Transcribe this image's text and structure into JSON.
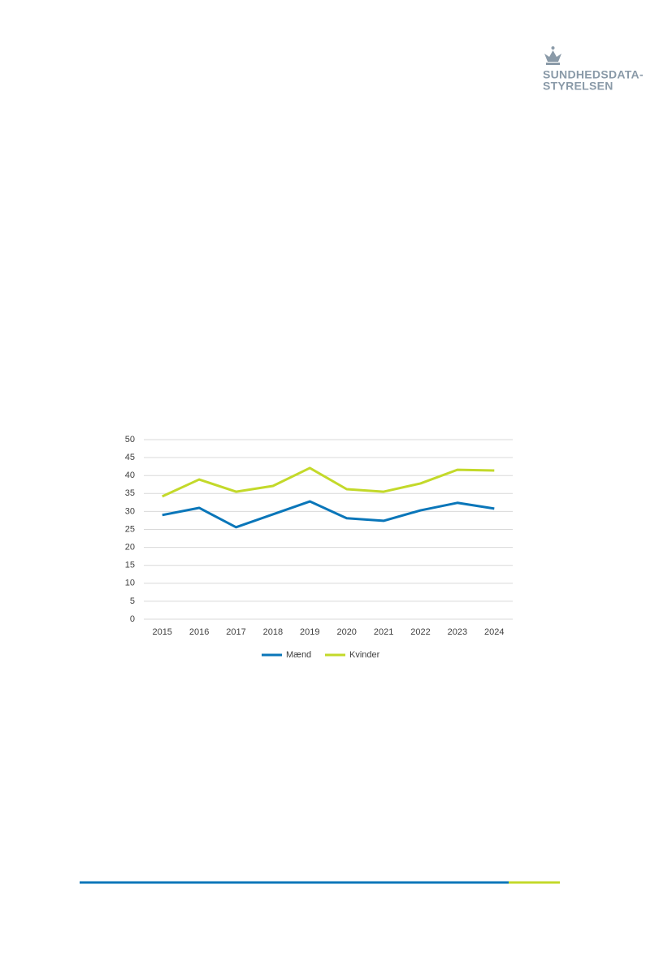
{
  "logo": {
    "line1": "SUNDHEDSDATA-",
    "line2": "STYRELSEN"
  },
  "chart_data": {
    "type": "line",
    "categories": [
      "2015",
      "2016",
      "2017",
      "2018",
      "2019",
      "2020",
      "2021",
      "2022",
      "2023",
      "2024"
    ],
    "series": [
      {
        "name": "Mænd",
        "color": "#0a76b9",
        "values": [
          29.0,
          31.0,
          25.6,
          29.2,
          32.8,
          28.1,
          27.4,
          30.3,
          32.4,
          30.8
        ]
      },
      {
        "name": "Kvinder",
        "color": "#c3d92a",
        "values": [
          34.2,
          38.9,
          35.5,
          37.1,
          42.1,
          36.2,
          35.5,
          37.8,
          41.6,
          41.4
        ]
      }
    ],
    "ylim": [
      0,
      50
    ],
    "yticks": [
      0,
      5,
      10,
      15,
      20,
      25,
      30,
      35,
      40,
      45,
      50
    ],
    "grid": true,
    "legend": "bottom"
  }
}
